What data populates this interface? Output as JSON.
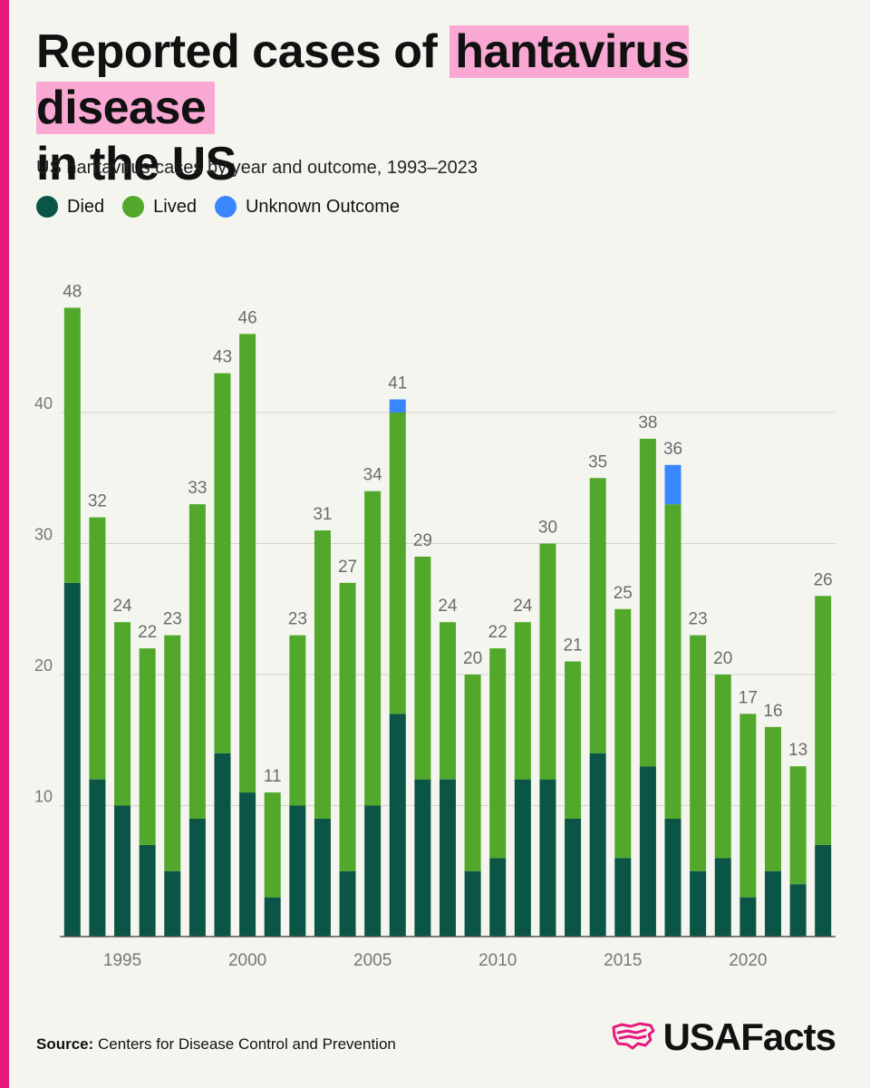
{
  "page": {
    "title_part1": "Reported cases of ",
    "title_highlight": "hantavirus disease",
    "title_part2": "in the US",
    "subtitle": "US hantavirus cases by year and outcome, 1993–2023",
    "source_label": "Source:",
    "source_text": "Centers for Disease Control and Prevention",
    "brand": "USAFacts",
    "brand_logo_icon": "usa-map-logo-icon",
    "colors": {
      "accent_bar": "#e8197d",
      "highlight": "#f9a8d4",
      "grid": "#d4d4cf",
      "axis_text": "#777777",
      "total_label": "#6b6b6b"
    }
  },
  "chart_data": {
    "type": "bar",
    "stacked": true,
    "categories": [
      1993,
      1994,
      1995,
      1996,
      1997,
      1998,
      1999,
      2000,
      2001,
      2002,
      2003,
      2004,
      2005,
      2006,
      2007,
      2008,
      2009,
      2010,
      2011,
      2012,
      2013,
      2014,
      2015,
      2016,
      2017,
      2018,
      2019,
      2020,
      2021,
      2022,
      2023
    ],
    "series": [
      {
        "name": "Died",
        "color": "#0a5545",
        "values": [
          27,
          12,
          10,
          7,
          5,
          9,
          14,
          11,
          3,
          10,
          9,
          5,
          10,
          17,
          12,
          12,
          5,
          6,
          12,
          12,
          9,
          14,
          6,
          13,
          9,
          5,
          6,
          3,
          5,
          4,
          7
        ]
      },
      {
        "name": "Lived",
        "color": "#52a82a",
        "values": [
          21,
          20,
          14,
          15,
          18,
          24,
          29,
          35,
          8,
          13,
          22,
          22,
          24,
          23,
          17,
          12,
          15,
          16,
          12,
          18,
          12,
          21,
          19,
          25,
          24,
          18,
          14,
          14,
          11,
          9,
          19
        ]
      },
      {
        "name": "Unknown Outcome",
        "color": "#3a86ff",
        "values": [
          0,
          0,
          0,
          0,
          0,
          0,
          0,
          0,
          0,
          0,
          0,
          0,
          0,
          1,
          0,
          0,
          0,
          0,
          0,
          0,
          0,
          0,
          0,
          0,
          3,
          0,
          0,
          0,
          0,
          0,
          0
        ]
      }
    ],
    "totals": [
      48,
      32,
      24,
      22,
      23,
      33,
      43,
      46,
      11,
      23,
      31,
      27,
      34,
      41,
      29,
      24,
      20,
      22,
      24,
      30,
      21,
      35,
      25,
      38,
      36,
      23,
      20,
      17,
      16,
      13,
      26
    ],
    "x_tick_labels": [
      "1995",
      "2000",
      "2005",
      "2010",
      "2015",
      "2020"
    ],
    "y_tick_labels": [
      "10",
      "20",
      "30",
      "40"
    ],
    "ylim": [
      0,
      50
    ],
    "grid": true,
    "legend_position": "top-left"
  }
}
